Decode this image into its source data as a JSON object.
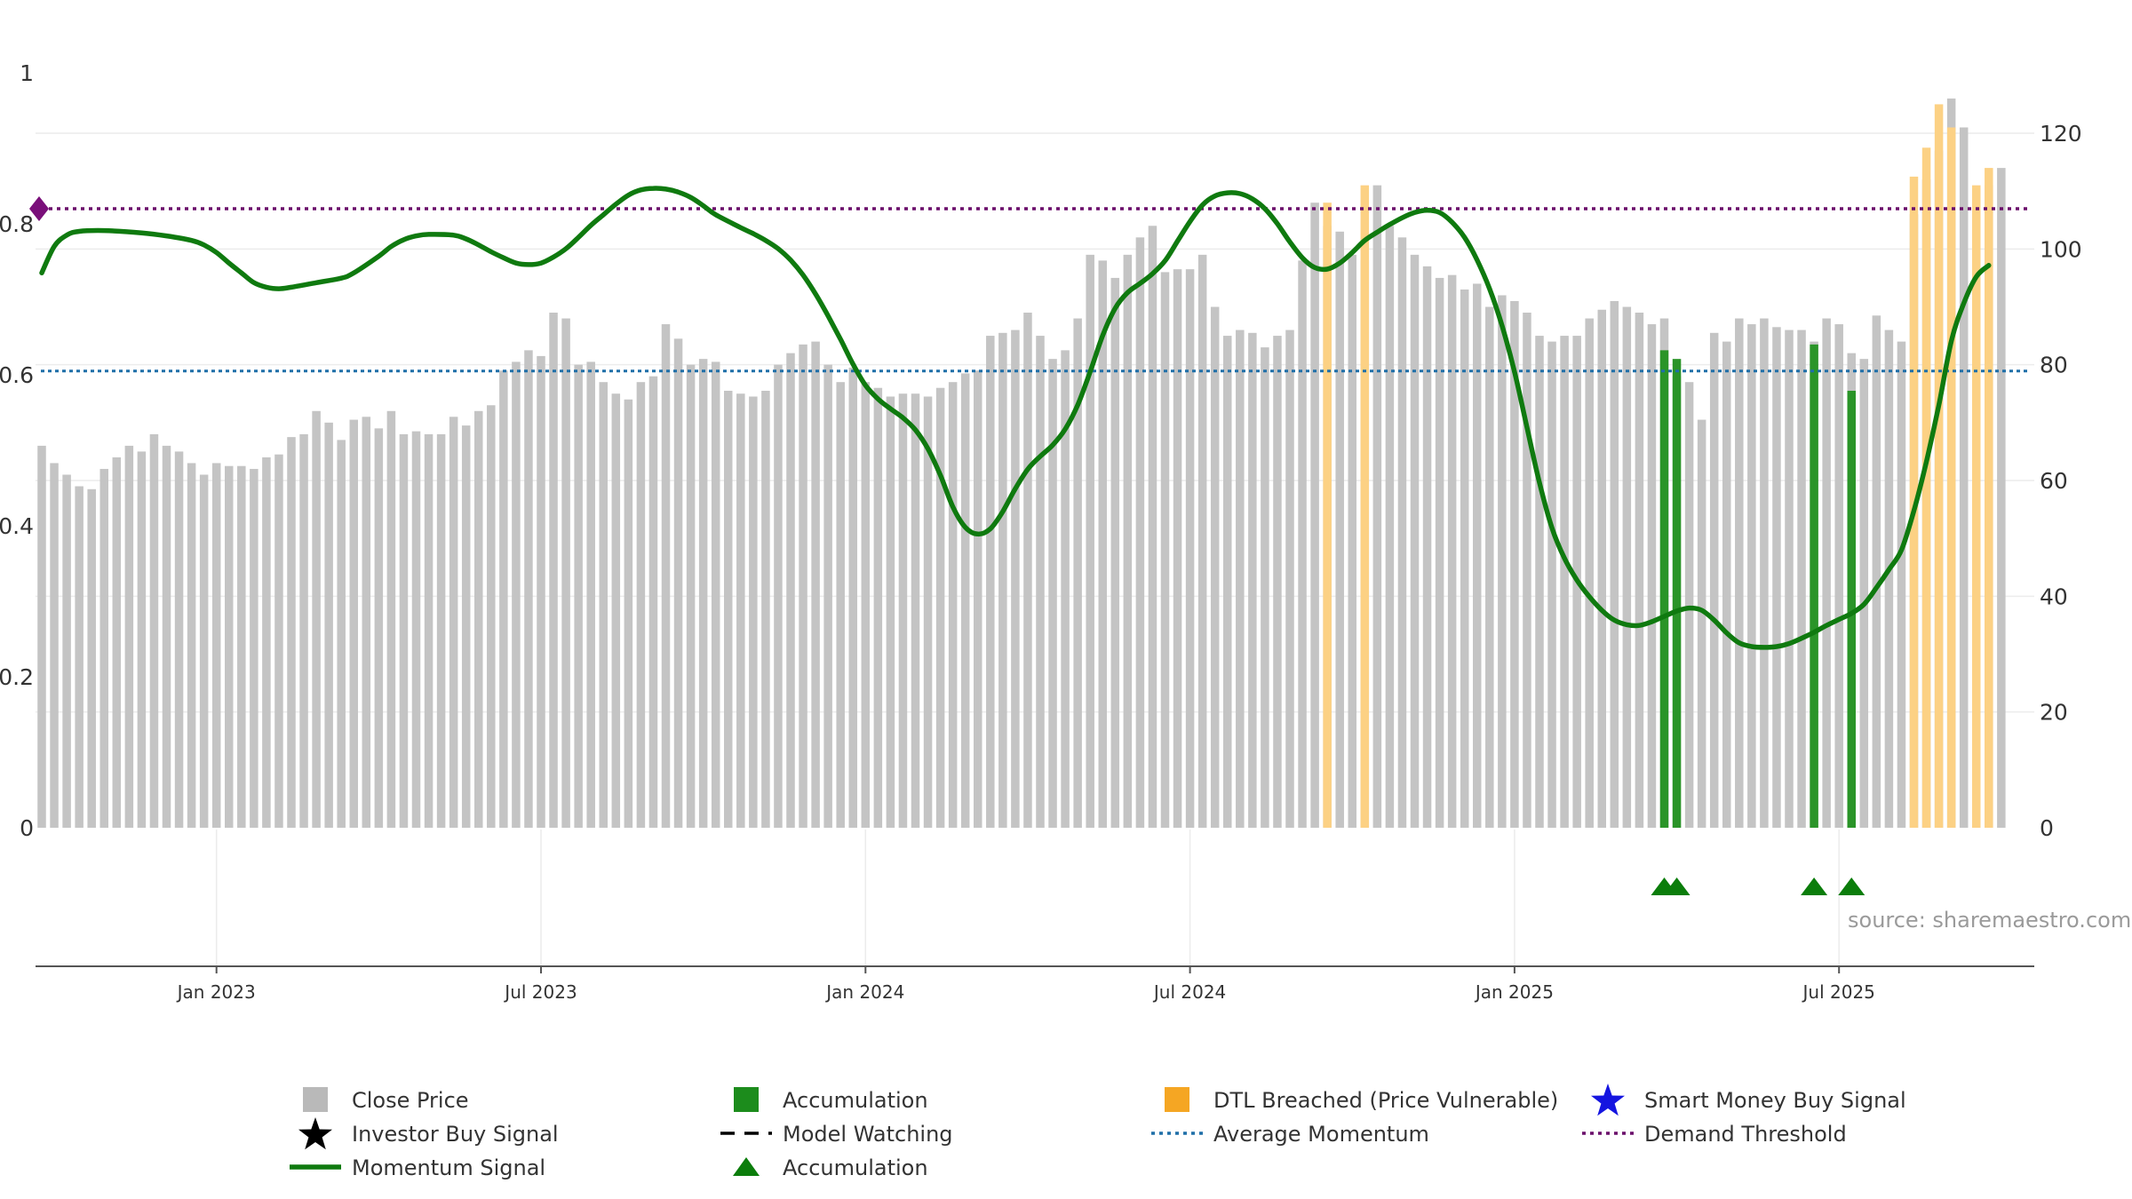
{
  "chart_data": {
    "type": "bar",
    "title": "",
    "source": "source: sharemaestro.com",
    "left_axis": {
      "range": [
        0,
        1
      ],
      "ticks": [
        "0",
        "0.2",
        "0.4",
        "0.6",
        "0.8",
        "1"
      ]
    },
    "right_axis": {
      "range": [
        0,
        130
      ],
      "ticks": [
        "0",
        "20",
        "40",
        "60",
        "80",
        "100",
        "120"
      ]
    },
    "x_ticks": [
      {
        "label": "Jan 2023",
        "week": 14
      },
      {
        "label": "Jul 2023",
        "week": 40
      },
      {
        "label": "Jan 2024",
        "week": 66
      },
      {
        "label": "Jul 2024",
        "week": 92
      },
      {
        "label": "Jan 2025",
        "week": 118
      },
      {
        "label": "Jul 2025",
        "week": 144
      }
    ],
    "week_range": [
      0,
      156
    ],
    "thresholds": {
      "demand_threshold": 0.82,
      "average_momentum": 0.605
    },
    "close_prices": [
      66,
      63,
      61,
      59,
      58.5,
      62,
      64,
      66,
      65,
      68,
      66,
      65,
      63,
      61,
      63,
      62.5,
      62.5,
      62,
      64,
      64.5,
      67.5,
      68,
      72,
      70,
      67,
      70.5,
      71,
      69,
      72,
      68,
      68.5,
      68,
      68,
      71,
      69.5,
      72,
      73,
      79,
      80.5,
      82.5,
      81.5,
      89,
      88,
      80,
      80.5,
      77,
      75,
      74,
      77,
      78,
      87,
      84.5,
      80,
      81,
      80.5,
      75.5,
      75,
      74.5,
      75.5,
      80,
      82,
      83.5,
      84,
      80,
      77,
      79.5,
      77,
      76,
      74.5,
      75,
      75,
      74.5,
      76,
      77,
      78.5,
      79,
      85,
      85.5,
      86,
      89,
      85,
      81,
      82.5,
      88,
      99,
      98,
      95,
      99,
      102,
      104,
      96,
      96.5,
      96.5,
      99,
      90,
      85,
      86,
      85.5,
      83,
      85,
      86,
      98,
      108,
      104,
      103,
      99,
      98,
      111,
      104,
      102,
      99,
      97,
      95,
      95.5,
      93,
      94,
      90,
      92,
      91,
      89,
      85,
      84,
      85,
      85,
      88,
      89.5,
      91,
      90,
      89,
      87,
      88,
      78,
      77,
      70.5,
      85.5,
      84,
      88,
      87,
      88,
      86.5,
      86,
      86,
      84,
      88,
      87,
      82,
      81,
      88.5,
      86,
      84,
      106,
      112,
      117,
      126,
      121,
      107,
      111,
      114
    ],
    "accumulation_bars": [
      {
        "week": 130,
        "value": 82.5
      },
      {
        "week": 131,
        "value": 81
      },
      {
        "week": 142,
        "value": 83.5
      },
      {
        "week": 145,
        "value": 75.5
      }
    ],
    "dtl_breached_bars": [
      {
        "week": 103,
        "value": 108
      },
      {
        "week": 106,
        "value": 111
      },
      {
        "week": 150,
        "value": 112.5
      },
      {
        "week": 151,
        "value": 117.5
      },
      {
        "week": 152,
        "value": 125
      },
      {
        "week": 153,
        "value": 121
      },
      {
        "week": 155,
        "value": 111
      },
      {
        "week": 156,
        "value": 114
      }
    ],
    "accumulation_markers": [
      130,
      131,
      142,
      145
    ],
    "start_marker": {
      "week": 0,
      "value": 0.82
    },
    "momentum": [
      [
        0,
        0.735
      ],
      [
        1,
        0.77
      ],
      [
        2,
        0.785
      ],
      [
        3,
        0.79
      ],
      [
        5,
        0.791
      ],
      [
        8,
        0.788
      ],
      [
        10,
        0.784
      ],
      [
        12,
        0.778
      ],
      [
        13,
        0.772
      ],
      [
        14,
        0.762
      ],
      [
        15,
        0.748
      ],
      [
        16,
        0.735
      ],
      [
        17,
        0.722
      ],
      [
        18,
        0.716
      ],
      [
        19,
        0.714
      ],
      [
        20,
        0.716
      ],
      [
        22,
        0.722
      ],
      [
        24,
        0.728
      ],
      [
        25,
        0.735
      ],
      [
        27,
        0.757
      ],
      [
        28,
        0.77
      ],
      [
        29,
        0.779
      ],
      [
        30,
        0.784
      ],
      [
        31,
        0.786
      ],
      [
        33,
        0.785
      ],
      [
        34,
        0.78
      ],
      [
        35,
        0.772
      ],
      [
        36,
        0.763
      ],
      [
        37,
        0.755
      ],
      [
        38,
        0.748
      ],
      [
        39,
        0.746
      ],
      [
        40,
        0.748
      ],
      [
        41,
        0.756
      ],
      [
        42,
        0.767
      ],
      [
        43,
        0.782
      ],
      [
        44,
        0.798
      ],
      [
        45,
        0.812
      ],
      [
        46,
        0.826
      ],
      [
        47,
        0.838
      ],
      [
        48,
        0.845
      ],
      [
        49,
        0.847
      ],
      [
        50,
        0.846
      ],
      [
        51,
        0.842
      ],
      [
        52,
        0.835
      ],
      [
        53,
        0.824
      ],
      [
        54,
        0.812
      ],
      [
        56,
        0.795
      ],
      [
        57,
        0.787
      ],
      [
        58,
        0.778
      ],
      [
        59,
        0.767
      ],
      [
        60,
        0.752
      ],
      [
        61,
        0.732
      ],
      [
        62,
        0.707
      ],
      [
        63,
        0.678
      ],
      [
        64,
        0.647
      ],
      [
        65,
        0.614
      ],
      [
        66,
        0.586
      ],
      [
        67,
        0.568
      ],
      [
        68,
        0.555
      ],
      [
        69,
        0.543
      ],
      [
        70,
        0.527
      ],
      [
        71,
        0.502
      ],
      [
        72,
        0.467
      ],
      [
        73,
        0.425
      ],
      [
        74,
        0.398
      ],
      [
        75,
        0.389
      ],
      [
        76,
        0.396
      ],
      [
        77,
        0.419
      ],
      [
        78,
        0.449
      ],
      [
        79,
        0.475
      ],
      [
        80,
        0.492
      ],
      [
        81,
        0.507
      ],
      [
        82,
        0.528
      ],
      [
        83,
        0.56
      ],
      [
        84,
        0.604
      ],
      [
        85,
        0.652
      ],
      [
        86,
        0.688
      ],
      [
        87,
        0.709
      ],
      [
        88,
        0.721
      ],
      [
        89,
        0.734
      ],
      [
        90,
        0.751
      ],
      [
        91,
        0.777
      ],
      [
        92,
        0.803
      ],
      [
        93,
        0.825
      ],
      [
        94,
        0.837
      ],
      [
        95,
        0.841
      ],
      [
        96,
        0.84
      ],
      [
        97,
        0.833
      ],
      [
        98,
        0.82
      ],
      [
        99,
        0.8
      ],
      [
        100,
        0.776
      ],
      [
        101,
        0.755
      ],
      [
        102,
        0.742
      ],
      [
        103,
        0.74
      ],
      [
        104,
        0.748
      ],
      [
        105,
        0.762
      ],
      [
        106,
        0.778
      ],
      [
        107,
        0.789
      ],
      [
        108,
        0.799
      ],
      [
        109,
        0.808
      ],
      [
        110,
        0.815
      ],
      [
        111,
        0.818
      ],
      [
        112,
        0.815
      ],
      [
        113,
        0.802
      ],
      [
        114,
        0.782
      ],
      [
        115,
        0.752
      ],
      [
        116,
        0.714
      ],
      [
        117,
        0.665
      ],
      [
        118,
        0.604
      ],
      [
        119,
        0.53
      ],
      [
        120,
        0.457
      ],
      [
        121,
        0.397
      ],
      [
        122,
        0.357
      ],
      [
        123,
        0.328
      ],
      [
        124,
        0.306
      ],
      [
        125,
        0.288
      ],
      [
        126,
        0.275
      ],
      [
        127,
        0.269
      ],
      [
        128,
        0.268
      ],
      [
        129,
        0.273
      ],
      [
        130,
        0.28
      ],
      [
        131,
        0.287
      ],
      [
        132,
        0.291
      ],
      [
        133,
        0.288
      ],
      [
        134,
        0.275
      ],
      [
        135,
        0.258
      ],
      [
        136,
        0.245
      ],
      [
        137,
        0.24
      ],
      [
        138,
        0.239
      ],
      [
        139,
        0.24
      ],
      [
        140,
        0.244
      ],
      [
        141,
        0.251
      ],
      [
        142,
        0.259
      ],
      [
        143,
        0.268
      ],
      [
        144,
        0.276
      ],
      [
        145,
        0.284
      ],
      [
        146,
        0.296
      ],
      [
        147,
        0.318
      ],
      [
        148,
        0.342
      ],
      [
        149,
        0.368
      ],
      [
        150,
        0.42
      ],
      [
        151,
        0.485
      ],
      [
        152,
        0.56
      ],
      [
        153,
        0.645
      ],
      [
        154,
        0.695
      ],
      [
        155,
        0.73
      ],
      [
        156,
        0.745
      ]
    ],
    "colors": {
      "close_price": "#c4c4c4",
      "accumulation": "#2a9428",
      "dtl_breached": "#fcd184",
      "momentum": "#0f7a0f",
      "average_momentum": "#1f6fa8",
      "demand_threshold": "#6b0f6b",
      "marker": "#0b7d0b",
      "start_marker": "#7a0f7a",
      "grid": "#ececec"
    },
    "legend": [
      {
        "label": "Close Price",
        "symbol": "square",
        "color": "#b9b9b9"
      },
      {
        "label": "Accumulation",
        "symbol": "square",
        "color": "#1c8c1c"
      },
      {
        "label": "DTL Breached (Price Vulnerable)",
        "symbol": "square",
        "color": "#f5a623"
      },
      {
        "label": "Smart Money Buy Signal",
        "symbol": "star",
        "color": "#1515e0"
      },
      {
        "label": "Investor Buy Signal",
        "symbol": "star",
        "color": "#000000"
      },
      {
        "label": "Model Watching",
        "symbol": "dash",
        "color": "#000000"
      },
      {
        "label": "Average Momentum",
        "symbol": "dotted",
        "color": "#1f6fa8"
      },
      {
        "label": "Demand Threshold",
        "symbol": "dotted",
        "color": "#6b0f6b"
      },
      {
        "label": "Momentum Signal",
        "symbol": "line",
        "color": "#0f7a0f"
      },
      {
        "label": "Accumulation",
        "symbol": "triangle",
        "color": "#0b7d0b"
      }
    ]
  }
}
